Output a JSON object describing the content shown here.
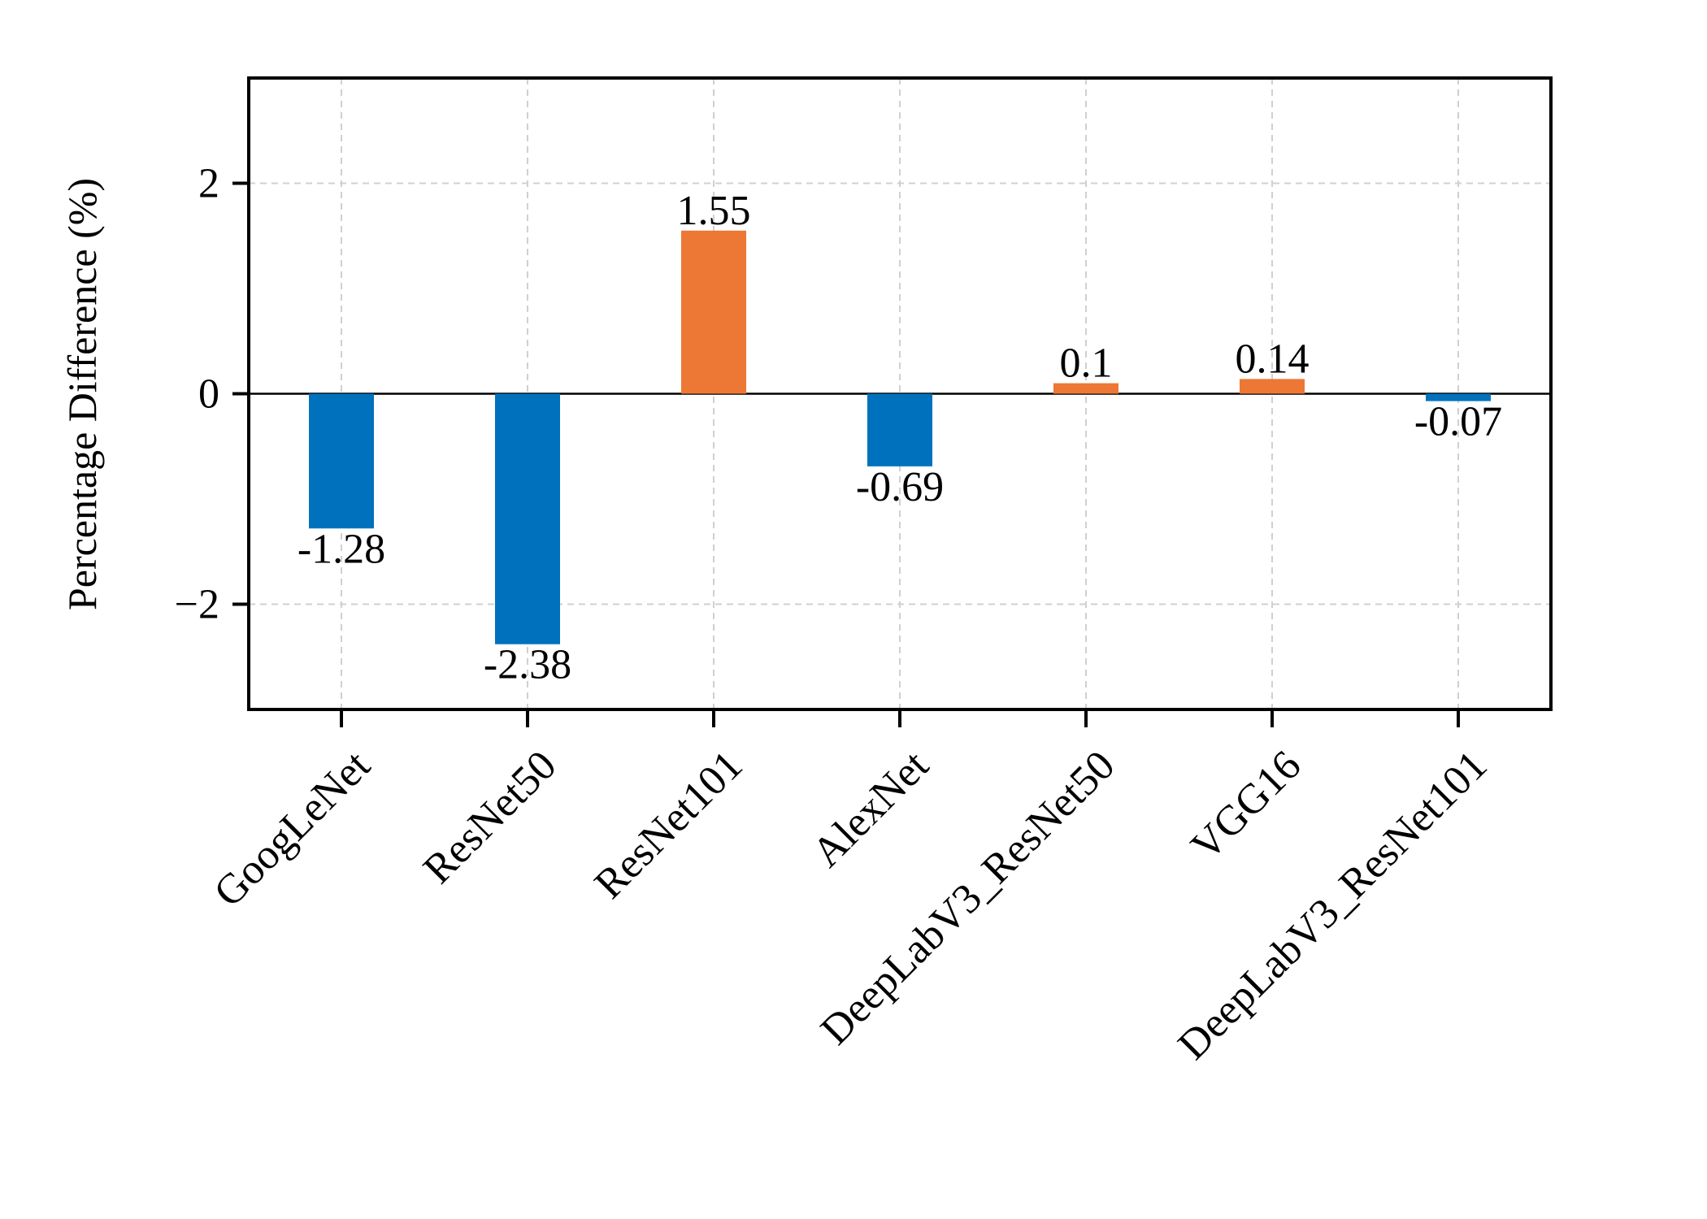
{
  "chart_data": {
    "type": "bar",
    "title": "",
    "xlabel": "",
    "ylabel": "Percentage Difference (%)",
    "ylim": [
      -3,
      3
    ],
    "yticks": [
      -2,
      0,
      2
    ],
    "ytick_labels": [
      "−2",
      "0",
      "2"
    ],
    "grid": true,
    "categories": [
      "GoogLeNet",
      "ResNet50",
      "ResNet101",
      "AlexNet",
      "DeepLabV3_ResNet50",
      "VGG16",
      "DeepLabV3_ResNet101"
    ],
    "values": [
      -1.28,
      -2.38,
      1.55,
      -0.69,
      0.1,
      0.14,
      -0.07
    ],
    "value_labels": [
      "-1.28",
      "-2.38",
      "1.55",
      "-0.69",
      "0.1",
      "0.14",
      "-0.07"
    ],
    "colors": {
      "negative": "#0072bd",
      "positive": "#ed7734"
    }
  }
}
